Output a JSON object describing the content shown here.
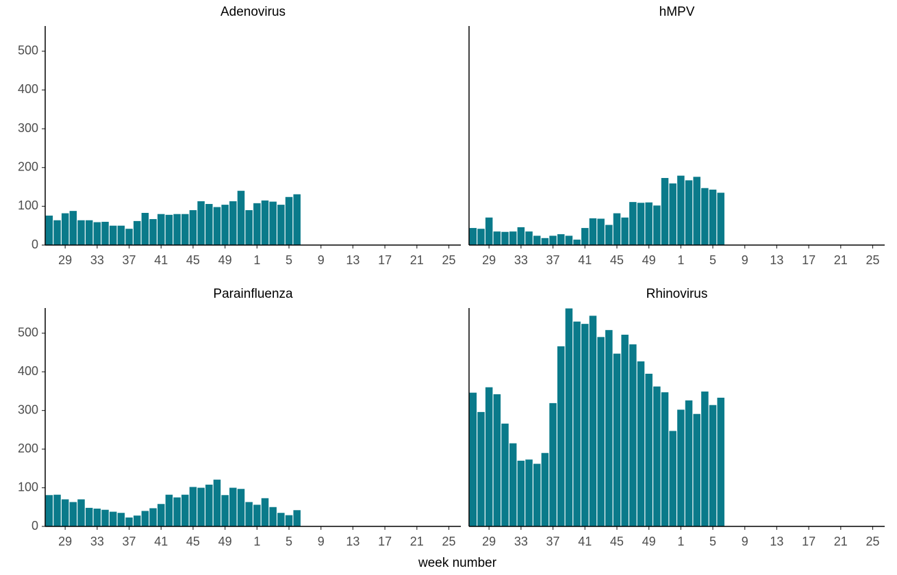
{
  "chart_data": [
    {
      "type": "bar",
      "title": "Adenovirus",
      "color": "#0a7a8a",
      "categories": [
        null,
        null,
        "29",
        null,
        null,
        null,
        "33",
        null,
        null,
        null,
        "37",
        null,
        null,
        null,
        "41",
        null,
        null,
        null,
        "45",
        null,
        null,
        null,
        "49",
        null,
        null,
        null,
        "1",
        null,
        null,
        null,
        "5",
        null,
        null,
        null,
        "9",
        null,
        null,
        null,
        "13",
        null,
        null,
        null,
        "17",
        null,
        null,
        null,
        "21",
        null,
        null,
        null,
        "25",
        null
      ],
      "values": [
        76,
        64,
        82,
        88,
        64,
        64,
        59,
        60,
        50,
        50,
        42,
        62,
        83,
        67,
        80,
        78,
        80,
        80,
        90,
        113,
        106,
        98,
        104,
        113,
        140,
        90,
        108,
        115,
        112,
        104,
        124,
        131,
        null,
        null,
        null,
        null,
        null,
        null,
        null,
        null,
        null,
        null,
        null,
        null,
        null,
        null,
        null,
        null,
        null,
        null,
        null,
        null
      ],
      "ylim": [
        0,
        565
      ],
      "yticks": [
        0,
        100,
        200,
        300,
        400,
        500
      ]
    },
    {
      "type": "bar",
      "title": "hMPV",
      "color": "#0a7a8a",
      "categories": [
        null,
        null,
        "29",
        null,
        null,
        null,
        "33",
        null,
        null,
        null,
        "37",
        null,
        null,
        null,
        "41",
        null,
        null,
        null,
        "45",
        null,
        null,
        null,
        "49",
        null,
        null,
        null,
        "1",
        null,
        null,
        null,
        "5",
        null,
        null,
        null,
        "9",
        null,
        null,
        null,
        "13",
        null,
        null,
        null,
        "17",
        null,
        null,
        null,
        "21",
        null,
        null,
        null,
        "25",
        null
      ],
      "values": [
        44,
        42,
        71,
        35,
        34,
        35,
        46,
        35,
        24,
        18,
        24,
        28,
        24,
        14,
        44,
        69,
        68,
        52,
        82,
        71,
        111,
        109,
        110,
        102,
        173,
        159,
        179,
        167,
        176,
        147,
        143,
        135,
        null,
        null,
        null,
        null,
        null,
        null,
        null,
        null,
        null,
        null,
        null,
        null,
        null,
        null,
        null,
        null,
        null,
        null,
        null,
        null
      ],
      "ylim": [
        0,
        565
      ]
    },
    {
      "type": "bar",
      "title": "Parainfluenza",
      "color": "#0a7a8a",
      "categories": [
        null,
        null,
        "29",
        null,
        null,
        null,
        "33",
        null,
        null,
        null,
        "37",
        null,
        null,
        null,
        "41",
        null,
        null,
        null,
        "45",
        null,
        null,
        null,
        "49",
        null,
        null,
        null,
        "1",
        null,
        null,
        null,
        "5",
        null,
        null,
        null,
        "9",
        null,
        null,
        null,
        "13",
        null,
        null,
        null,
        "17",
        null,
        null,
        null,
        "21",
        null,
        null,
        null,
        "25",
        null
      ],
      "values": [
        81,
        82,
        70,
        63,
        70,
        48,
        46,
        43,
        38,
        35,
        23,
        28,
        40,
        47,
        58,
        82,
        75,
        82,
        102,
        100,
        108,
        121,
        81,
        100,
        97,
        63,
        56,
        73,
        50,
        35,
        29,
        42,
        null,
        null,
        null,
        null,
        null,
        null,
        null,
        null,
        null,
        null,
        null,
        null,
        null,
        null,
        null,
        null,
        null,
        null,
        null,
        null
      ],
      "ylim": [
        0,
        565
      ],
      "yticks": [
        0,
        100,
        200,
        300,
        400,
        500
      ]
    },
    {
      "type": "bar",
      "title": "Rhinovirus",
      "color": "#0a7a8a",
      "categories": [
        null,
        null,
        "29",
        null,
        null,
        null,
        "33",
        null,
        null,
        null,
        "37",
        null,
        null,
        null,
        "41",
        null,
        null,
        null,
        "45",
        null,
        null,
        null,
        "49",
        null,
        null,
        null,
        "1",
        null,
        null,
        null,
        "5",
        null,
        null,
        null,
        "9",
        null,
        null,
        null,
        "13",
        null,
        null,
        null,
        "17",
        null,
        null,
        null,
        "21",
        null,
        null,
        null,
        "25",
        null
      ],
      "values": [
        346,
        296,
        360,
        342,
        266,
        215,
        170,
        173,
        162,
        190,
        319,
        466,
        564,
        530,
        524,
        545,
        490,
        508,
        447,
        496,
        471,
        427,
        395,
        362,
        347,
        247,
        302,
        326,
        291,
        349,
        314,
        333,
        null,
        null,
        null,
        null,
        null,
        null,
        null,
        null,
        null,
        null,
        null,
        null,
        null,
        null,
        null,
        null,
        null,
        null,
        null,
        null
      ],
      "ylim": [
        0,
        565
      ]
    }
  ],
  "xlabel": "week number"
}
